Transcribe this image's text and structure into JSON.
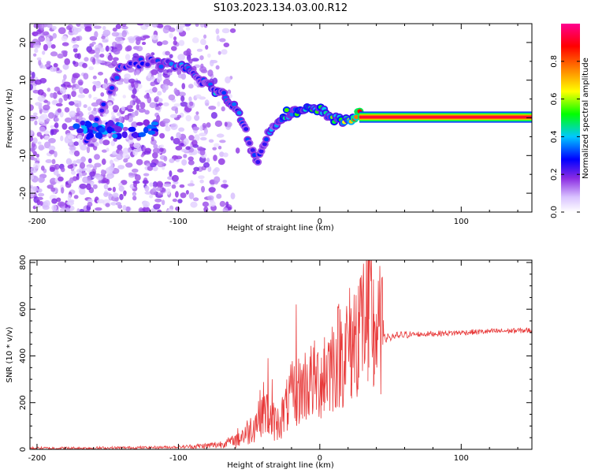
{
  "title": "S103.2023.134.03.00.R12",
  "chart_data": [
    {
      "type": "heatmap",
      "xlabel": "Height of straight line (km)",
      "ylabel": "Frequency (Hz)",
      "xlim": [
        -205,
        150
      ],
      "ylim": [
        -25,
        25
      ],
      "xticks": [
        -200,
        -100,
        0,
        100
      ],
      "yticks": [
        20,
        10,
        0,
        -10,
        -20
      ],
      "grid": false,
      "colorbar": {
        "label": "Normalized spectral amplitude",
        "range": [
          0,
          1
        ],
        "ticks": [
          "0.0",
          "0.2",
          "0.4",
          "0.6",
          "0.8"
        ],
        "colormap": [
          "#ffffff",
          "#d9c2ff",
          "#8a2be2",
          "#0000ff",
          "#00c8ff",
          "#00ff00",
          "#ffff00",
          "#ff8000",
          "#ff0000",
          "#ff0090"
        ]
      },
      "ridge": {
        "description_points": [
          {
            "x": -160,
            "y": -2,
            "amp": 0.35
          },
          {
            "x": -140,
            "y": 14,
            "amp": 0.3
          },
          {
            "x": -120,
            "y": 15,
            "amp": 0.3
          },
          {
            "x": -95,
            "y": 13,
            "amp": 0.4
          },
          {
            "x": -80,
            "y": 9,
            "amp": 0.35
          },
          {
            "x": -65,
            "y": 5,
            "amp": 0.45
          },
          {
            "x": -55,
            "y": 0,
            "amp": 0.35
          },
          {
            "x": -50,
            "y": -6,
            "amp": 0.35
          },
          {
            "x": -45,
            "y": -12,
            "amp": 0.3
          },
          {
            "x": -35,
            "y": -3,
            "amp": 0.35
          },
          {
            "x": -25,
            "y": 1,
            "amp": 0.5
          },
          {
            "x": -10,
            "y": 2,
            "amp": 0.55
          },
          {
            "x": 0,
            "y": 2,
            "amp": 0.5
          },
          {
            "x": 15,
            "y": -1,
            "amp": 0.55
          },
          {
            "x": 30,
            "y": 1,
            "amp": 0.9
          },
          {
            "x": 45,
            "y": 1,
            "amp": 0.85
          },
          {
            "x": 50,
            "y": 0,
            "amp": 0.95
          },
          {
            "x": 150,
            "y": 0,
            "amp": 0.95
          }
        ]
      }
    },
    {
      "type": "line",
      "xlabel": "Height of straight line (km)",
      "ylabel": "SNR (10 * v/v)",
      "xlim": [
        -205,
        150
      ],
      "ylim": [
        0,
        810
      ],
      "xticks": [
        -200,
        -100,
        0,
        100
      ],
      "yticks": [
        0,
        200,
        400,
        600,
        800
      ],
      "grid": false,
      "color": "#e83a3a",
      "x": [
        -205,
        -180,
        -150,
        -120,
        -100,
        -80,
        -70,
        -60,
        -50,
        -45,
        -40,
        -35,
        -30,
        -25,
        -20,
        -15,
        -10,
        -5,
        0,
        5,
        10,
        15,
        20,
        25,
        30,
        35,
        40,
        45,
        50,
        60,
        80,
        100,
        120,
        150
      ],
      "y": [
        5,
        5,
        6,
        8,
        10,
        15,
        22,
        40,
        80,
        120,
        180,
        130,
        110,
        160,
        230,
        250,
        280,
        290,
        300,
        350,
        380,
        420,
        440,
        480,
        560,
        590,
        500,
        480,
        480,
        490,
        495,
        500,
        505,
        510
      ],
      "spikes": [
        {
          "x": -37,
          "y": 390
        },
        {
          "x": -34,
          "y": 300
        },
        {
          "x": -17,
          "y": 620
        },
        {
          "x": 3,
          "y": 480
        },
        {
          "x": 22,
          "y": 450
        },
        {
          "x": 27,
          "y": 700
        },
        {
          "x": 34,
          "y": 810
        },
        {
          "x": 38,
          "y": 580
        }
      ]
    }
  ]
}
